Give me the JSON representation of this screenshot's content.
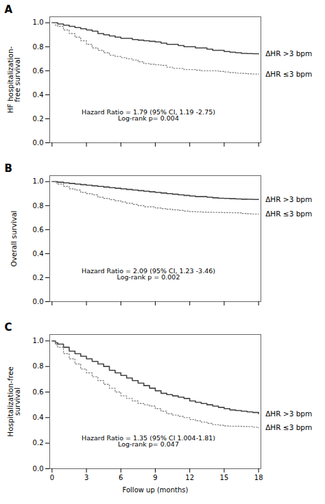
{
  "chart_data": [
    {
      "type": "step",
      "title": "A",
      "ylabel": "HF hospitalization-\nfree survival",
      "annotation": "Hazard Ratio = 1.79 (95% CI, 1.19 -2.75)\nLog-rank p= 0.004",
      "x": [
        0,
        0.3,
        0.5,
        1,
        1.5,
        2,
        2.5,
        3,
        3.5,
        4,
        4.5,
        5,
        5.5,
        6,
        6.5,
        7,
        7.5,
        8,
        8.5,
        9,
        9.5,
        10,
        10.5,
        11,
        11.5,
        12,
        12.5,
        13,
        13.5,
        14,
        14.5,
        15,
        15.5,
        16,
        16.5,
        17,
        17.5,
        18
      ],
      "series": [
        {
          "name": "ΔHR >3 bpm",
          "color": "#444444",
          "line_style": "solid",
          "values": [
            1.0,
            1.0,
            0.99,
            0.98,
            0.97,
            0.96,
            0.95,
            0.94,
            0.93,
            0.91,
            0.9,
            0.89,
            0.88,
            0.87,
            0.87,
            0.86,
            0.855,
            0.85,
            0.845,
            0.84,
            0.83,
            0.82,
            0.82,
            0.81,
            0.8,
            0.8,
            0.79,
            0.79,
            0.78,
            0.77,
            0.77,
            0.76,
            0.755,
            0.75,
            0.745,
            0.743,
            0.742,
            0.74
          ]
        },
        {
          "name": "ΔHR ≤3 bpm",
          "color": "#888888",
          "line_style": "dotted",
          "values": [
            1.0,
            0.98,
            0.97,
            0.94,
            0.91,
            0.88,
            0.85,
            0.82,
            0.79,
            0.77,
            0.75,
            0.73,
            0.72,
            0.71,
            0.7,
            0.69,
            0.675,
            0.66,
            0.655,
            0.65,
            0.645,
            0.63,
            0.62,
            0.62,
            0.61,
            0.61,
            0.605,
            0.6,
            0.6,
            0.6,
            0.595,
            0.59,
            0.585,
            0.58,
            0.578,
            0.575,
            0.573,
            0.57
          ]
        }
      ],
      "xlim": [
        -0.2,
        18.2
      ],
      "xticks": [
        0,
        3,
        6,
        9,
        12,
        15,
        18
      ],
      "ylim": [
        0.0,
        1.05
      ],
      "yticks": [
        {
          "value": 0.0,
          "label": "0.0"
        },
        0.2,
        0.4,
        0.6,
        0.8,
        {
          "value": 1.0,
          "label": "1.0"
        }
      ],
      "legend": "right",
      "tick_labels": "y"
    },
    {
      "type": "step",
      "title": "B",
      "ylabel": "Overall survival",
      "annotation": "Hazard Ratio = 2.09 (95% CI, 1.23 -3.46)\nLog-rank p = 0.002",
      "x": [
        0,
        0.3,
        0.5,
        1,
        1.5,
        2,
        2.5,
        3,
        3.5,
        4,
        4.5,
        5,
        5.5,
        6,
        6.5,
        7,
        7.5,
        8,
        8.5,
        9,
        9.5,
        10,
        10.5,
        11,
        11.5,
        12,
        12.5,
        13,
        13.5,
        14,
        14.5,
        15,
        15.5,
        16,
        16.5,
        17,
        17.5,
        18
      ],
      "series": [
        {
          "name": "ΔHR >3 bpm",
          "color": "#444444",
          "line_style": "solid",
          "values": [
            1.0,
            1.0,
            0.995,
            0.99,
            0.985,
            0.98,
            0.975,
            0.97,
            0.965,
            0.96,
            0.955,
            0.95,
            0.945,
            0.94,
            0.935,
            0.93,
            0.925,
            0.92,
            0.915,
            0.91,
            0.905,
            0.9,
            0.895,
            0.89,
            0.885,
            0.88,
            0.875,
            0.875,
            0.87,
            0.865,
            0.862,
            0.86,
            0.858,
            0.856,
            0.854,
            0.853,
            0.852,
            0.852
          ]
        },
        {
          "name": "ΔHR ≤3 bpm",
          "color": "#888888",
          "line_style": "dotted",
          "values": [
            1.0,
            0.99,
            0.98,
            0.96,
            0.94,
            0.93,
            0.91,
            0.9,
            0.89,
            0.87,
            0.86,
            0.85,
            0.84,
            0.83,
            0.82,
            0.81,
            0.8,
            0.79,
            0.79,
            0.78,
            0.775,
            0.77,
            0.765,
            0.76,
            0.755,
            0.75,
            0.748,
            0.746,
            0.745,
            0.744,
            0.743,
            0.742,
            0.741,
            0.74,
            0.735,
            0.732,
            0.73,
            0.73
          ]
        }
      ],
      "xlim": [
        -0.2,
        18.2
      ],
      "xticks": [
        0,
        3,
        6,
        9,
        12,
        15,
        18
      ],
      "ylim": [
        0.0,
        1.05
      ],
      "yticks": [
        {
          "value": 0.0,
          "label": "0.0"
        },
        0.2,
        0.4,
        0.6,
        0.8,
        {
          "value": 1.0,
          "label": "1.0"
        }
      ],
      "legend": "right",
      "tick_labels": "y"
    },
    {
      "type": "step",
      "title": "C",
      "ylabel": "Hospitalization-free\nsurvival",
      "xlabel": "Follow up (months)",
      "annotation": "Hazard Ratio = 1.35 (95% CI 1.004-1.81)\nLog-rank p= 0.047",
      "x": [
        0,
        0.3,
        0.5,
        1,
        1.5,
        2,
        2.5,
        3,
        3.5,
        4,
        4.5,
        5,
        5.5,
        6,
        6.5,
        7,
        7.5,
        8,
        8.5,
        9,
        9.5,
        10,
        10.5,
        11,
        11.5,
        12,
        12.5,
        13,
        13.5,
        14,
        14.5,
        15,
        15.5,
        16,
        16.5,
        17,
        17.5,
        18
      ],
      "series": [
        {
          "name": "ΔHR >3 bpm",
          "color": "#444444",
          "line_style": "solid",
          "values": [
            1.0,
            0.985,
            0.975,
            0.95,
            0.92,
            0.9,
            0.88,
            0.86,
            0.84,
            0.82,
            0.8,
            0.77,
            0.75,
            0.73,
            0.71,
            0.69,
            0.67,
            0.65,
            0.63,
            0.61,
            0.59,
            0.58,
            0.57,
            0.56,
            0.55,
            0.53,
            0.52,
            0.51,
            0.5,
            0.49,
            0.48,
            0.47,
            0.46,
            0.455,
            0.45,
            0.445,
            0.44,
            0.43
          ]
        },
        {
          "name": "ΔHR ≤3 bpm",
          "color": "#888888",
          "line_style": "dotted",
          "values": [
            1.0,
            0.97,
            0.95,
            0.9,
            0.86,
            0.82,
            0.78,
            0.75,
            0.72,
            0.69,
            0.66,
            0.63,
            0.6,
            0.57,
            0.55,
            0.53,
            0.51,
            0.5,
            0.49,
            0.47,
            0.45,
            0.43,
            0.42,
            0.41,
            0.4,
            0.385,
            0.375,
            0.365,
            0.355,
            0.345,
            0.34,
            0.335,
            0.333,
            0.332,
            0.331,
            0.33,
            0.325,
            0.32
          ]
        }
      ],
      "xlim": [
        -0.2,
        18.2
      ],
      "xticks": [
        0,
        3,
        6,
        9,
        12,
        15,
        18
      ],
      "ylim": [
        0.0,
        1.05
      ],
      "yticks": [
        {
          "value": 0.0,
          "label": "0.0"
        },
        0.2,
        0.4,
        0.6,
        0.8,
        {
          "value": 1.0,
          "label": "1.0"
        }
      ],
      "legend": "right"
    }
  ]
}
